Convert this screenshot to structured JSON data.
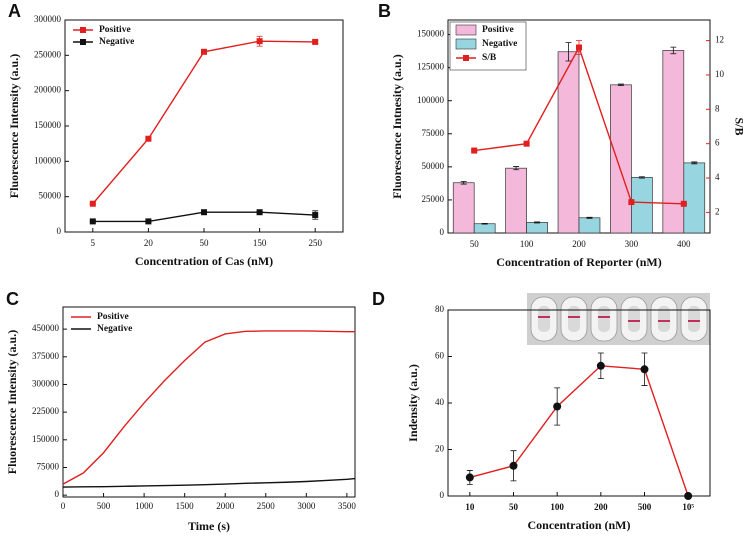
{
  "chart_data": [
    {
      "type": "line",
      "label": "A",
      "x_label": "Concentration of Cas (nM)",
      "y_label": "Fluorescence Intensity (a.u.)",
      "categories": [
        "5",
        "20",
        "50",
        "150",
        "250"
      ],
      "series": [
        {
          "name": "Positive",
          "color": "#e0201e",
          "marker": "square",
          "values": [
            40000,
            132000,
            255000,
            270000,
            269000
          ],
          "errors": [
            1000,
            1000,
            2000,
            7000,
            2000
          ]
        },
        {
          "name": "Negative",
          "color": "#111111",
          "marker": "square",
          "values": [
            15000,
            15000,
            28000,
            28000,
            24000
          ],
          "errors": [
            1000,
            1000,
            1000,
            1000,
            6000
          ]
        }
      ],
      "ylim": [
        0,
        300000
      ],
      "yticks": [
        0,
        50000,
        100000,
        150000,
        200000,
        250000,
        300000
      ],
      "legend": "upper left"
    },
    {
      "type": "bar",
      "label": "B",
      "x_label": "Concentration of Reporter (nM)",
      "y_label": "Fluorescence Intnesity (a.u.)",
      "y2_label": "S/B",
      "y2_color": "#e0201e",
      "categories": [
        "50",
        "100",
        "200",
        "300",
        "400"
      ],
      "series": [
        {
          "name": "Positive",
          "color": "#f4b8da",
          "values": [
            38000,
            49000,
            137000,
            112000,
            138000
          ],
          "errors": [
            1000,
            1200,
            7000,
            600,
            2500
          ]
        },
        {
          "name": "Negative",
          "color": "#97d6e0",
          "values": [
            7000,
            8000,
            11500,
            42000,
            53000
          ],
          "errors": [
            300,
            400,
            400,
            500,
            700
          ]
        },
        {
          "name": "S/B",
          "type": "line",
          "axis": "y2",
          "color": "#e0201e",
          "marker": "square",
          "values": [
            5.6,
            6.0,
            11.6,
            2.6,
            2.5
          ],
          "errors": [
            0.05,
            0.05,
            0.4,
            0.05,
            0.05
          ]
        }
      ],
      "ylim": [
        0,
        161000
      ],
      "yticks": [
        0,
        25000,
        50000,
        75000,
        100000,
        125000,
        150000
      ],
      "y2lim": [
        0.8,
        13.2
      ],
      "y2ticks": [
        2,
        4,
        6,
        8,
        10,
        12
      ],
      "legend": "upper left"
    },
    {
      "type": "line",
      "label": "C",
      "x_label": "Time (s)",
      "y_label": "Fluorescence Intensity (a.u.)",
      "x": [
        0,
        250,
        500,
        750,
        1000,
        1250,
        1500,
        1750,
        2000,
        2250,
        2500,
        2750,
        3000,
        3250,
        3500,
        3600
      ],
      "series": [
        {
          "name": "Positive",
          "color": "#e0201e",
          "values": [
            30000,
            60000,
            115000,
            185000,
            250000,
            310000,
            365000,
            415000,
            437000,
            444000,
            445000,
            445000,
            445000,
            444000,
            443000,
            443000
          ]
        },
        {
          "name": "Negative",
          "color": "#111111",
          "values": [
            22000,
            22500,
            23000,
            24000,
            25000,
            26000,
            27000,
            28500,
            30000,
            32000,
            33500,
            35000,
            37000,
            40000,
            43000,
            45000
          ]
        }
      ],
      "xlim": [
        0,
        3600
      ],
      "xticks": [
        0,
        500,
        1000,
        1500,
        2000,
        2500,
        3000,
        3500
      ],
      "ylim": [
        -5000,
        510000
      ],
      "yticks": [
        0,
        75000,
        150000,
        225000,
        300000,
        375000,
        450000
      ],
      "legend": "upper left"
    },
    {
      "type": "line",
      "label": "D",
      "x_label": "Concentration (nM)",
      "y_label": "Indensity (a.u.)",
      "categories": [
        "10",
        "50",
        "100",
        "200",
        "500",
        "10⁵"
      ],
      "series": [
        {
          "color": "#e0201e",
          "marker": "circle",
          "marker_color": "#111111",
          "values": [
            8,
            13,
            38.5,
            56,
            54.5,
            0
          ],
          "errors": [
            3,
            6.5,
            8,
            5.5,
            7,
            0
          ]
        }
      ],
      "ylim": [
        0,
        80
      ],
      "yticks": [
        0,
        20,
        40,
        60,
        80
      ]
    }
  ]
}
